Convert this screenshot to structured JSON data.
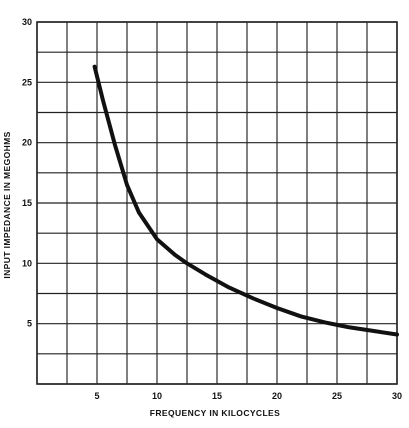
{
  "chart_data": {
    "type": "line",
    "title": "",
    "xlabel": "FREQUENCY IN KILOCYCLES",
    "ylabel": "INPUT IMPEDANCE IN MEGOHMS",
    "xlim": [
      0,
      30
    ],
    "ylim": [
      0,
      30
    ],
    "grid": true,
    "x_ticks": [
      5,
      10,
      15,
      20,
      25,
      30
    ],
    "y_ticks": [
      5,
      10,
      15,
      20,
      25,
      30
    ],
    "x_tick_labels": [
      "5",
      "10",
      "15",
      "20",
      "25",
      "30"
    ],
    "y_tick_labels": [
      "5",
      "10",
      "15",
      "20",
      "25",
      "30"
    ],
    "grid_step": 2.5,
    "series": [
      {
        "x": [
          4.8,
          5.5,
          6.5,
          7.5,
          8.5,
          10,
          11.5,
          12.5,
          14,
          16,
          18,
          20,
          22,
          24,
          25,
          26,
          28,
          30
        ],
        "y": [
          26.3,
          23.5,
          19.8,
          16.5,
          14.2,
          12,
          10.7,
          10,
          9.1,
          8,
          7.1,
          6.3,
          5.6,
          5.1,
          4.9,
          4.7,
          4.4,
          4.1
        ]
      }
    ],
    "colors": {
      "line": "#111111",
      "grid": "#222222",
      "background": "#ffffff"
    }
  }
}
